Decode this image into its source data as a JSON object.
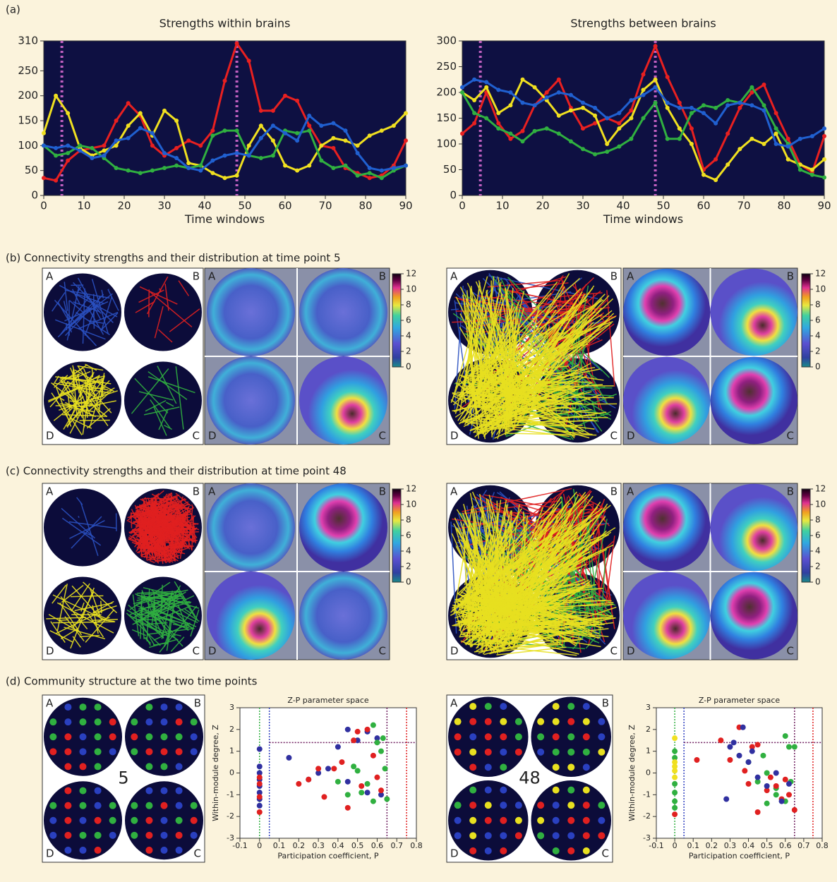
{
  "figure": {
    "panel_a": "(a)",
    "panel_b": "(b) Connectivity strengths and their distribution at time point 5",
    "panel_c": "(c) Connectivity strengths and their distribution at time point 48",
    "panel_d": "(d) Community structure at the two time points",
    "regions": [
      "A",
      "B",
      "C",
      "D"
    ],
    "time_points": [
      5,
      48
    ],
    "colorbar": {
      "lim": [
        0,
        12
      ],
      "ticks": [
        0,
        2,
        4,
        6,
        8,
        10,
        12
      ]
    }
  },
  "chart_data": [
    {
      "type": "line",
      "title": "Strengths within brains",
      "xlabel": "Time windows",
      "xlim": [
        0,
        90
      ],
      "xticks": [
        0,
        10,
        20,
        30,
        40,
        50,
        60,
        70,
        80,
        90
      ],
      "ylim": [
        0,
        310
      ],
      "yticks": [
        0,
        50,
        100,
        150,
        200,
        250,
        310
      ],
      "vlines": [
        4.5,
        48
      ],
      "vline_color": "#c060c0",
      "x": [
        0,
        3,
        6,
        9,
        12,
        15,
        18,
        21,
        24,
        27,
        30,
        33,
        36,
        39,
        42,
        45,
        48,
        51,
        54,
        57,
        60,
        63,
        66,
        69,
        72,
        75,
        78,
        81,
        84,
        87,
        90
      ],
      "series": [
        {
          "color": "#e82020",
          "values": [
            35,
            30,
            70,
            90,
            95,
            100,
            150,
            185,
            160,
            100,
            80,
            95,
            110,
            100,
            130,
            230,
            305,
            270,
            170,
            170,
            200,
            190,
            140,
            100,
            95,
            55,
            45,
            35,
            40,
            60,
            110
          ]
        },
        {
          "color": "#f0e020",
          "values": [
            125,
            200,
            165,
            95,
            80,
            90,
            100,
            140,
            165,
            120,
            170,
            150,
            65,
            60,
            45,
            35,
            40,
            100,
            140,
            110,
            60,
            50,
            60,
            100,
            115,
            110,
            100,
            120,
            130,
            140,
            165
          ]
        },
        {
          "color": "#30b040",
          "values": [
            100,
            80,
            85,
            100,
            95,
            75,
            55,
            50,
            45,
            50,
            55,
            60,
            55,
            60,
            120,
            130,
            130,
            80,
            75,
            80,
            130,
            125,
            130,
            70,
            55,
            60,
            40,
            45,
            35,
            50,
            60
          ]
        },
        {
          "color": "#2060d0",
          "values": [
            100,
            95,
            100,
            90,
            75,
            80,
            110,
            115,
            135,
            125,
            85,
            75,
            55,
            50,
            70,
            80,
            85,
            80,
            115,
            140,
            125,
            110,
            160,
            140,
            145,
            130,
            85,
            55,
            50,
            55,
            60
          ]
        }
      ]
    },
    {
      "type": "line",
      "title": "Strengths between brains",
      "xlabel": "Time windows",
      "xlim": [
        0,
        90
      ],
      "xticks": [
        0,
        10,
        20,
        30,
        40,
        50,
        60,
        70,
        80,
        90
      ],
      "ylim": [
        0,
        300
      ],
      "yticks": [
        0,
        50,
        100,
        150,
        200,
        250,
        300
      ],
      "vlines": [
        4.5,
        48
      ],
      "vline_color": "#c060c0",
      "x": [
        0,
        3,
        6,
        9,
        12,
        15,
        18,
        21,
        24,
        27,
        30,
        33,
        36,
        39,
        42,
        45,
        48,
        51,
        54,
        57,
        60,
        63,
        66,
        69,
        72,
        75,
        78,
        81,
        84,
        87,
        90
      ],
      "series": [
        {
          "color": "#e82020",
          "values": [
            120,
            140,
            200,
            140,
            110,
            125,
            175,
            200,
            225,
            170,
            130,
            140,
            150,
            140,
            165,
            235,
            290,
            230,
            180,
            130,
            50,
            70,
            120,
            170,
            200,
            215,
            160,
            110,
            60,
            45,
            115
          ]
        },
        {
          "color": "#f0e020",
          "values": [
            200,
            185,
            210,
            160,
            175,
            225,
            210,
            185,
            155,
            165,
            170,
            155,
            100,
            130,
            150,
            205,
            225,
            170,
            130,
            100,
            40,
            30,
            60,
            90,
            110,
            100,
            120,
            70,
            60,
            50,
            70
          ]
        },
        {
          "color": "#30b040",
          "values": [
            200,
            160,
            150,
            130,
            120,
            105,
            125,
            130,
            120,
            105,
            90,
            80,
            85,
            95,
            110,
            150,
            180,
            110,
            110,
            160,
            175,
            170,
            185,
            180,
            210,
            175,
            130,
            100,
            50,
            40,
            35
          ]
        },
        {
          "color": "#2060d0",
          "values": [
            210,
            225,
            220,
            205,
            200,
            180,
            175,
            190,
            200,
            195,
            180,
            170,
            150,
            160,
            185,
            195,
            210,
            180,
            170,
            170,
            160,
            140,
            175,
            180,
            175,
            165,
            100,
            95,
            110,
            115,
            130
          ]
        }
      ]
    },
    {
      "type": "scatter",
      "title": "Z-P parameter space",
      "xlabel": "Participation coefficient, P",
      "ylabel": "Within-module degree, Z",
      "xlim": [
        -0.1,
        0.8
      ],
      "xticks": [
        -0.1,
        0,
        0.1,
        0.2,
        0.3,
        0.4,
        0.5,
        0.6,
        0.7,
        0.8
      ],
      "ylim": [
        -3,
        3
      ],
      "yticks": [
        -3,
        -2,
        -1,
        0,
        1,
        2,
        3
      ],
      "vlines": [
        0,
        0.05,
        0.65,
        0.75
      ],
      "hlines": [
        1.4
      ],
      "series": [
        {
          "color": "#3030a0",
          "x": [
            0,
            0,
            0,
            0,
            0,
            0,
            0,
            0,
            0.15,
            0.25,
            0.3,
            0.4,
            0.45,
            0.5,
            0.55,
            0.6,
            0.62,
            0.45,
            0.35,
            0.55
          ],
          "y": [
            1.1,
            0.3,
            0,
            -0.3,
            -0.6,
            -0.9,
            -1.2,
            -1.5,
            0.7,
            -0.3,
            0,
            1.2,
            2.0,
            1.5,
            1.9,
            1.6,
            -1.0,
            -0.4,
            0.2,
            -0.9
          ]
        },
        {
          "color": "#e02020",
          "x": [
            0,
            0,
            0,
            0,
            0.2,
            0.25,
            0.3,
            0.33,
            0.38,
            0.42,
            0.48,
            0.5,
            0.55,
            0.58,
            0.6,
            0.62,
            0.52,
            0.45
          ],
          "y": [
            -0.2,
            -0.5,
            -1.1,
            -1.8,
            -0.5,
            -0.3,
            0.2,
            -1.1,
            0.2,
            0.5,
            1.5,
            1.9,
            2.0,
            0.8,
            -0.2,
            -0.8,
            -0.6,
            -1.6
          ]
        },
        {
          "color": "#30b040",
          "x": [
            0.4,
            0.45,
            0.5,
            0.55,
            0.58,
            0.6,
            0.62,
            0.64,
            0.65,
            0.58,
            0.52,
            0.63,
            0.48
          ],
          "y": [
            -0.4,
            -1.0,
            0.1,
            -0.5,
            2.2,
            1.4,
            1.0,
            0.2,
            -1.2,
            -1.3,
            -0.9,
            1.6,
            0.3
          ]
        }
      ]
    },
    {
      "type": "scatter",
      "title": "Z-P parameter space",
      "xlabel": "Participation coefficient, P",
      "ylabel": "Within-module degree, Z",
      "xlim": [
        -0.1,
        0.8
      ],
      "xticks": [
        -0.1,
        0,
        0.1,
        0.2,
        0.3,
        0.4,
        0.5,
        0.6,
        0.7,
        0.8
      ],
      "ylim": [
        -3,
        3
      ],
      "yticks": [
        -3,
        -2,
        -1,
        0,
        1,
        2,
        3
      ],
      "vlines": [
        0,
        0.05,
        0.65,
        0.75
      ],
      "hlines": [
        1.4
      ],
      "series": [
        {
          "color": "#30b040",
          "x": [
            0,
            0,
            0,
            0,
            0,
            0,
            0.4,
            0.45,
            0.5,
            0.55,
            0.6,
            0.62,
            0.63,
            0.65,
            0.5,
            0.55,
            0.48,
            0.6
          ],
          "y": [
            1.0,
            0.7,
            -0.5,
            -0.9,
            -1.3,
            -1.6,
            0.5,
            -0.4,
            0.0,
            -1.0,
            1.7,
            1.2,
            -0.4,
            1.2,
            -1.4,
            -0.7,
            0.8,
            -1.3
          ]
        },
        {
          "color": "#f0e020",
          "x": [
            0,
            0,
            0,
            0,
            0
          ],
          "y": [
            1.6,
            0.3,
            0.1,
            -0.2,
            0.5
          ]
        },
        {
          "color": "#e02020",
          "x": [
            0,
            0.12,
            0.25,
            0.3,
            0.35,
            0.38,
            0.42,
            0.45,
            0.5,
            0.55,
            0.58,
            0.6,
            0.62,
            0.65,
            0.45,
            0.52,
            0.4
          ],
          "y": [
            -1.9,
            0.6,
            1.5,
            0.6,
            2.1,
            0.1,
            1.2,
            -1.8,
            -0.8,
            -0.6,
            -1.2,
            -0.3,
            -1.0,
            -1.7,
            1.3,
            -0.2,
            -0.5
          ]
        },
        {
          "color": "#3030a0",
          "x": [
            0.28,
            0.3,
            0.32,
            0.35,
            0.4,
            0.45,
            0.5,
            0.55,
            0.58,
            0.62,
            0.37,
            0.42
          ],
          "y": [
            -1.2,
            1.2,
            1.4,
            0.8,
            0.5,
            -0.2,
            -0.6,
            0.0,
            -1.3,
            -0.5,
            2.1,
            1.0
          ]
        }
      ]
    }
  ]
}
